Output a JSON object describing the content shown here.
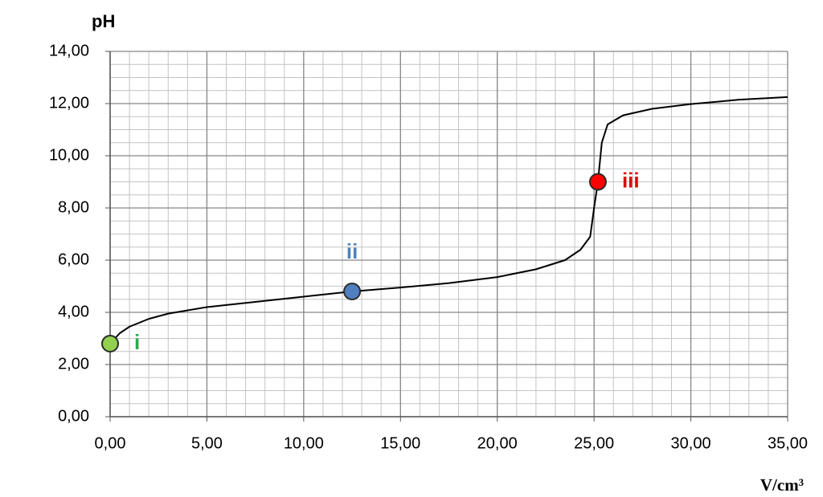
{
  "chart_data": {
    "type": "line",
    "y_label": "pH",
    "x_label": "V/cm³",
    "x": [
      0,
      0.5,
      1,
      2,
      3,
      5,
      7.5,
      10,
      12.5,
      15,
      17.5,
      20,
      22,
      23.5,
      24.3,
      24.8,
      25,
      25.2,
      25.4,
      25.7,
      26.5,
      28,
      30,
      32.5,
      35
    ],
    "values": [
      2.8,
      3.2,
      3.45,
      3.75,
      3.95,
      4.2,
      4.4,
      4.6,
      4.8,
      4.95,
      5.12,
      5.35,
      5.65,
      6.0,
      6.4,
      6.9,
      8.0,
      9.0,
      10.5,
      11.2,
      11.55,
      11.8,
      11.98,
      12.15,
      12.25
    ],
    "color": "#000000",
    "points": [
      {
        "label": "i",
        "x": 0,
        "y": 2.8,
        "color": "#92d050",
        "label_color": "#2aa84a"
      },
      {
        "label": "ii",
        "x": 12.5,
        "y": 4.8,
        "color": "#4f7fc0",
        "label_color": "#4f81bd"
      },
      {
        "label": "iii",
        "x": 25.2,
        "y": 9.0,
        "color": "#ff0000",
        "label_color": "#e00000"
      }
    ],
    "xlim": [
      0,
      35
    ],
    "ylim": [
      0,
      14
    ],
    "xticks": [
      {
        "value": 0,
        "label": "0,00"
      },
      {
        "value": 5,
        "label": "5,00"
      },
      {
        "value": 10,
        "label": "10,00"
      },
      {
        "value": 15,
        "label": "15,00"
      },
      {
        "value": 20,
        "label": "20,00"
      },
      {
        "value": 25,
        "label": "25,00"
      },
      {
        "value": 30,
        "label": "30,00"
      },
      {
        "value": 35,
        "label": "35,00"
      }
    ],
    "yticks": [
      {
        "value": 0,
        "label": "0,00"
      },
      {
        "value": 2,
        "label": "2,00"
      },
      {
        "value": 4,
        "label": "4,00"
      },
      {
        "value": 6,
        "label": "6,00"
      },
      {
        "value": 8,
        "label": "8,00"
      },
      {
        "value": 10,
        "label": "10,00"
      },
      {
        "value": 12,
        "label": "12,00"
      },
      {
        "value": 14,
        "label": "14,00"
      }
    ],
    "x_minor_step": 1,
    "y_minor_step": 0.5,
    "grid": true
  }
}
